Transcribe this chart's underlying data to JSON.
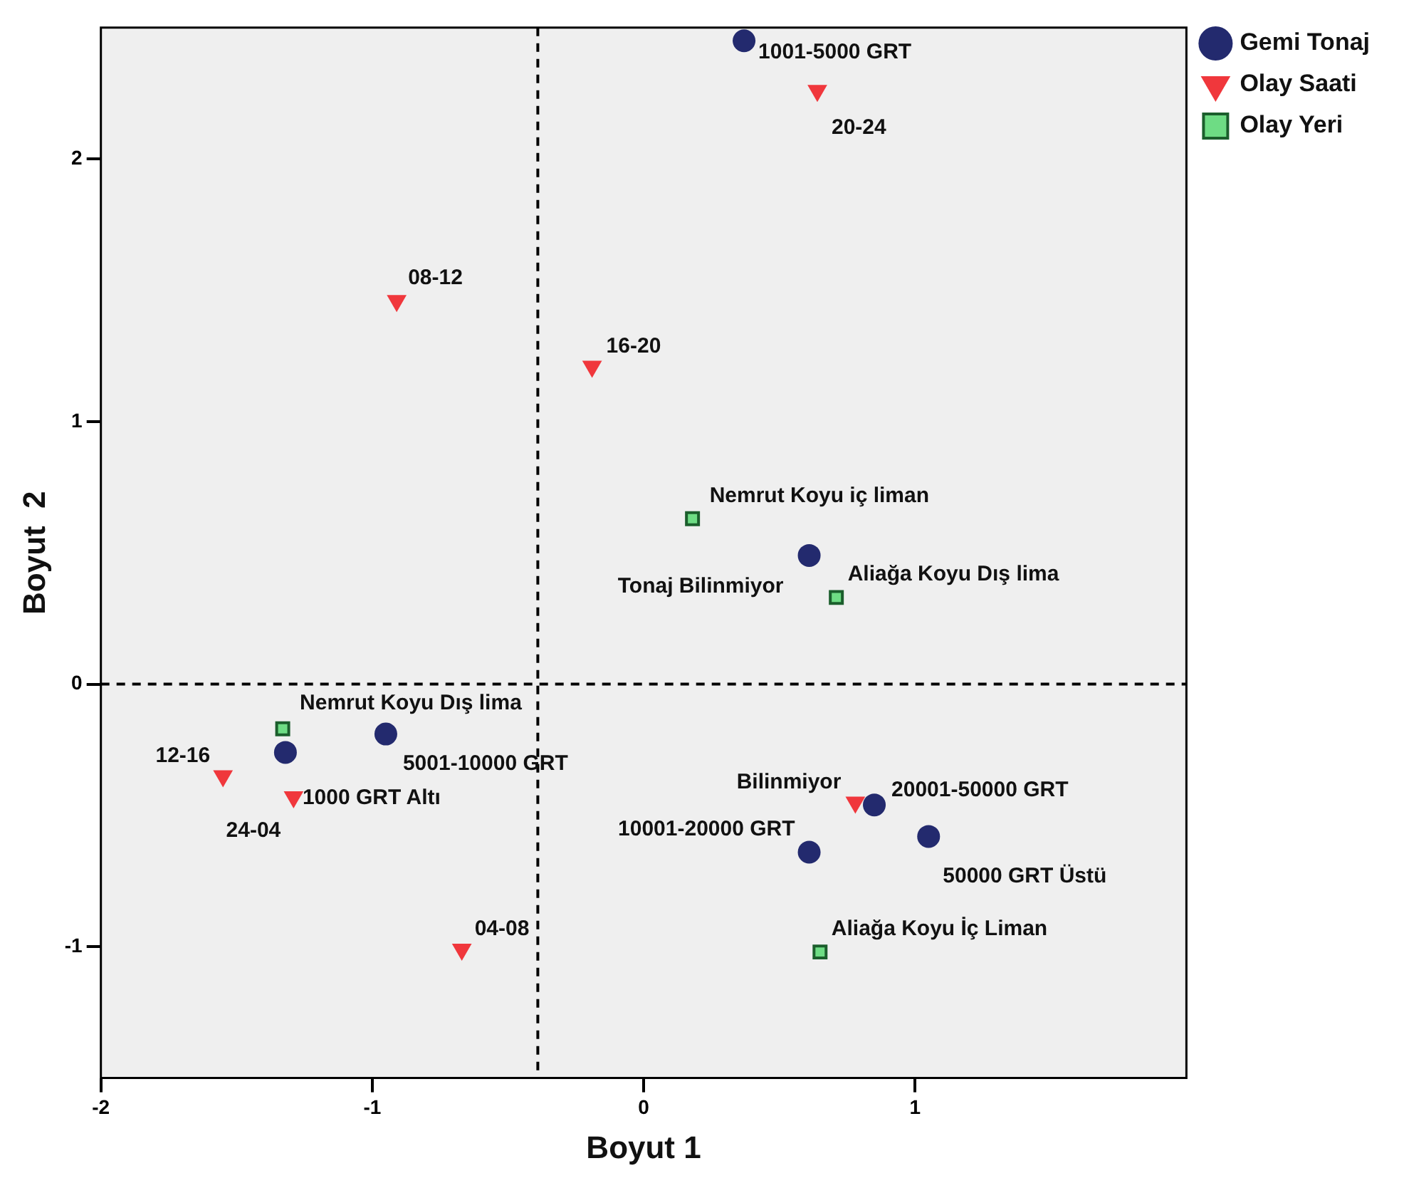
{
  "chart_data": {
    "type": "scatter",
    "xlabel": "Boyut 1",
    "ylabel": "Boyut  2",
    "xlim": [
      -2,
      2
    ],
    "ylim": [
      -1.5,
      2.5
    ],
    "xticks": [
      -2,
      -1,
      0,
      1
    ],
    "yticks": [
      -1,
      0,
      1,
      2
    ],
    "grid": false,
    "legend": "top right",
    "ref_lines": [
      {
        "axis": "x",
        "value": -0.39,
        "line_style": "dashed",
        "color": "#000000"
      },
      {
        "axis": "y",
        "value": 0,
        "line_style": "dashed",
        "color": "#000000"
      }
    ],
    "series": [
      {
        "name": "Gemi Tonaj",
        "color": "#232a6e",
        "marker": "circle",
        "x": [
          0.37,
          0.61,
          -0.95,
          -1.32,
          0.85,
          0.61,
          1.05
        ],
        "values": [
          2.45,
          0.49,
          -0.19,
          -0.26,
          -0.46,
          -0.64,
          -0.58
        ]
      },
      {
        "name": "Olay Saati",
        "color": "#f0373c",
        "marker": "triangle",
        "x": [
          0.64,
          -0.91,
          -0.19,
          -1.55,
          -1.29,
          0.78,
          -0.67
        ],
        "values": [
          2.26,
          1.46,
          1.21,
          -0.35,
          -0.43,
          -0.45,
          -1.01
        ]
      },
      {
        "name": "Olay Yeri",
        "color": "#6edc84",
        "marker": "square",
        "x": [
          0.18,
          0.71,
          -1.33,
          0.65
        ],
        "values": [
          0.63,
          0.33,
          -0.17,
          -1.02
        ]
      }
    ],
    "annotations": [
      {
        "text": "1001-5000 GRT",
        "x": 0.37,
        "y": 2.45
      },
      {
        "text": "Tonaj Bilinmiyor",
        "x": 0.61,
        "y": 0.49
      },
      {
        "text": "5001-10000 GRT",
        "x": -0.95,
        "y": -0.19
      },
      {
        "text": "1000 GRT Altı",
        "x": -1.32,
        "y": -0.26
      },
      {
        "text": "20001-50000 GRT",
        "x": 0.85,
        "y": -0.46
      },
      {
        "text": "10001-20000 GRT",
        "x": 0.61,
        "y": -0.64
      },
      {
        "text": "50000 GRT Üstü",
        "x": 1.05,
        "y": -0.58
      },
      {
        "text": "20-24",
        "x": 0.64,
        "y": 2.26
      },
      {
        "text": "08-12",
        "x": -0.91,
        "y": 1.46
      },
      {
        "text": "16-20",
        "x": -0.19,
        "y": 1.21
      },
      {
        "text": "12-16",
        "x": -1.55,
        "y": -0.35
      },
      {
        "text": "24-04",
        "x": -1.29,
        "y": -0.43
      },
      {
        "text": "Bilinmiyor",
        "x": 0.78,
        "y": -0.45
      },
      {
        "text": "04-08",
        "x": -0.67,
        "y": -1.01
      },
      {
        "text": "Nemrut Koyu iç liman",
        "x": 0.18,
        "y": 0.63
      },
      {
        "text": "Aliağa Koyu Dış lima",
        "x": 0.71,
        "y": 0.33
      },
      {
        "text": "Nemrut Koyu Dış lima",
        "x": -1.33,
        "y": -0.17
      },
      {
        "text": "Aliağa Koyu İç Liman",
        "x": 0.65,
        "y": -1.02
      }
    ]
  }
}
